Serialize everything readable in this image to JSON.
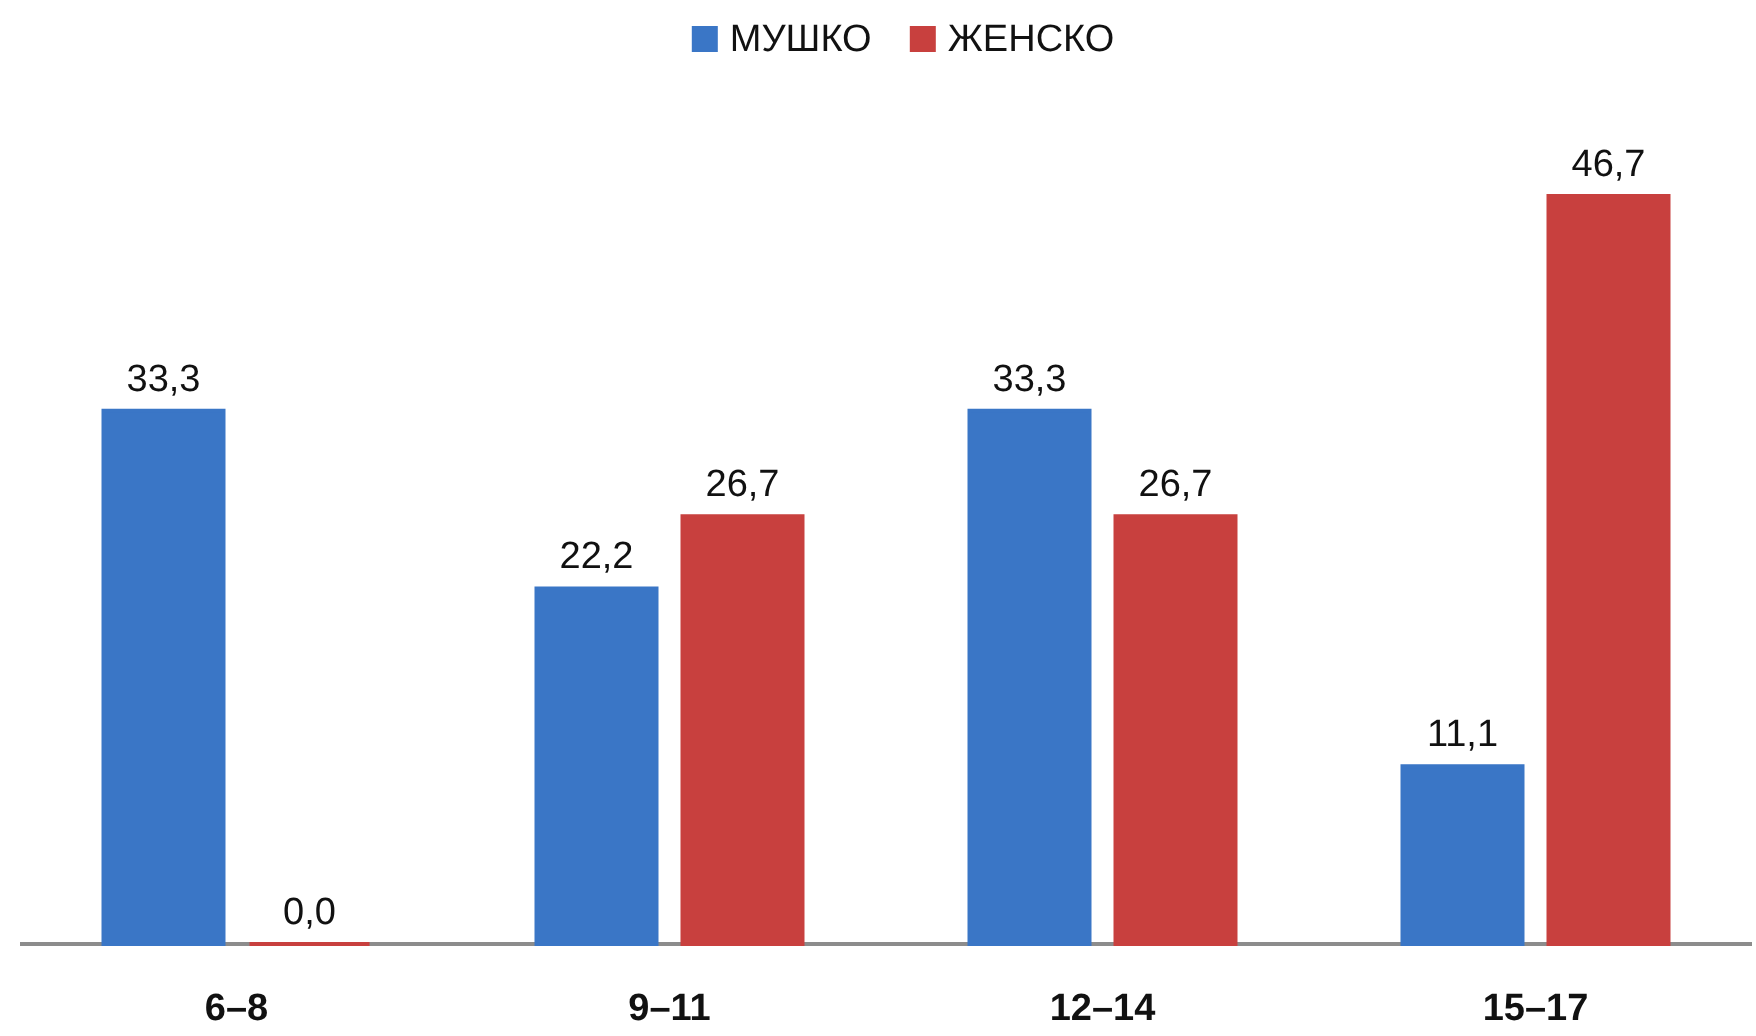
{
  "chart_data": {
    "type": "bar",
    "categories": [
      "6–8",
      "9–11",
      "12–14",
      "15–17"
    ],
    "series": [
      {
        "name": "МУШКО",
        "color": "#3a76c6",
        "values": [
          33.3,
          22.2,
          33.3,
          11.1
        ],
        "value_labels": [
          "33,3",
          "22,2",
          "33,3",
          "11,1"
        ]
      },
      {
        "name": "ЖЕНСКО",
        "color": "#c8403e",
        "values": [
          0.0,
          26.7,
          26.7,
          46.7
        ],
        "value_labels": [
          "0,0",
          "26,7",
          "26,7",
          "46,7"
        ]
      }
    ],
    "legend": "top"
  }
}
